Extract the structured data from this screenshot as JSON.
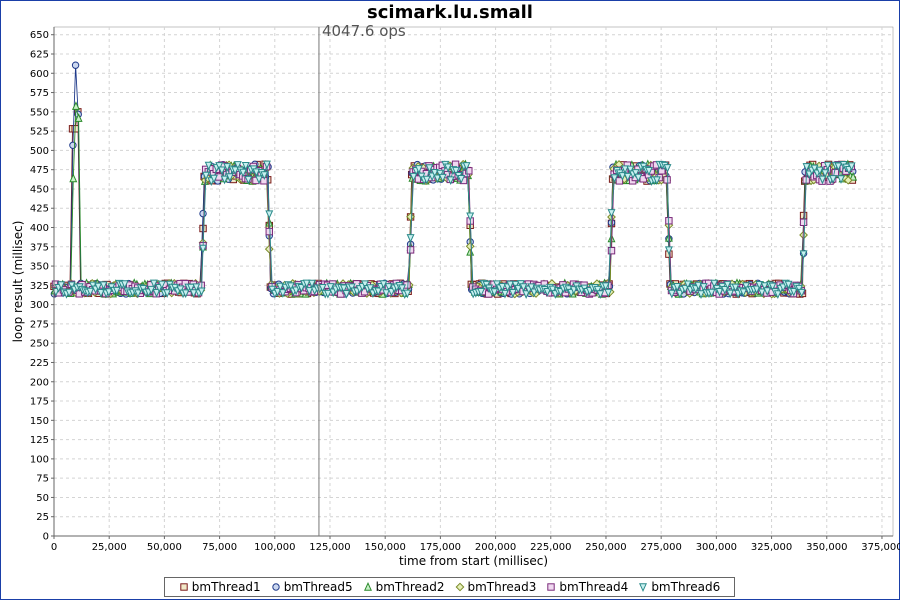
{
  "chart_data": {
    "type": "line",
    "title": "scimark.lu.small",
    "xlabel": "time from start (millisec)",
    "ylabel": "loop result (millisec)",
    "xlim": [
      0,
      380000
    ],
    "ylim": [
      0,
      660
    ],
    "x_ticks": [
      "0",
      "25,000",
      "50,000",
      "75,000",
      "100,000",
      "125,000",
      "150,000",
      "175,000",
      "200,000",
      "225,000",
      "250,000",
      "275,000",
      "300,000",
      "325,000",
      "350,000",
      "375,000"
    ],
    "y_ticks": [
      "0",
      "25",
      "50",
      "75",
      "100",
      "125",
      "150",
      "175",
      "200",
      "225",
      "250",
      "275",
      "300",
      "325",
      "350",
      "375",
      "400",
      "425",
      "450",
      "475",
      "500",
      "525",
      "550",
      "575",
      "600",
      "625",
      "650"
    ],
    "grid": true,
    "legend_position": "bottom",
    "annotation": {
      "text": "4047.6 ops",
      "x": 120000
    },
    "phases": [
      {
        "x_start": 0,
        "x_end": 67000,
        "level": 320,
        "spikes": [
          [
            10000,
            620
          ],
          [
            11000,
            550
          ],
          [
            9000,
            528
          ]
        ]
      },
      {
        "x_start": 68000,
        "x_end": 97000,
        "level": 470
      },
      {
        "x_start": 98000,
        "x_end": 161000,
        "level": 320
      },
      {
        "x_start": 162000,
        "x_end": 188000,
        "level": 470
      },
      {
        "x_start": 189000,
        "x_end": 252000,
        "level": 320
      },
      {
        "x_start": 253000,
        "x_end": 278000,
        "level": 470
      },
      {
        "x_start": 279000,
        "x_end": 339000,
        "level": 320
      },
      {
        "x_start": 340000,
        "x_end": 362000,
        "level": 470
      }
    ],
    "series": [
      {
        "name": "bmThread1",
        "marker": "square",
        "color": "#7a1a1a",
        "fill": "#f2e8c8"
      },
      {
        "name": "bmThread5",
        "marker": "circle",
        "color": "#1f3a8a",
        "fill": "#ccd8f0"
      },
      {
        "name": "bmThread2",
        "marker": "triangle-up",
        "color": "#2a8a2a",
        "fill": "#c8f0c8"
      },
      {
        "name": "bmThread3",
        "marker": "diamond",
        "color": "#7a8a2a",
        "fill": "#e6f0b8"
      },
      {
        "name": "bmThread4",
        "marker": "square",
        "color": "#7a2a7a",
        "fill": "#f0d8f0"
      },
      {
        "name": "bmThread6",
        "marker": "triangle-down",
        "color": "#2a8a8a",
        "fill": "#c8f0f0"
      }
    ]
  }
}
